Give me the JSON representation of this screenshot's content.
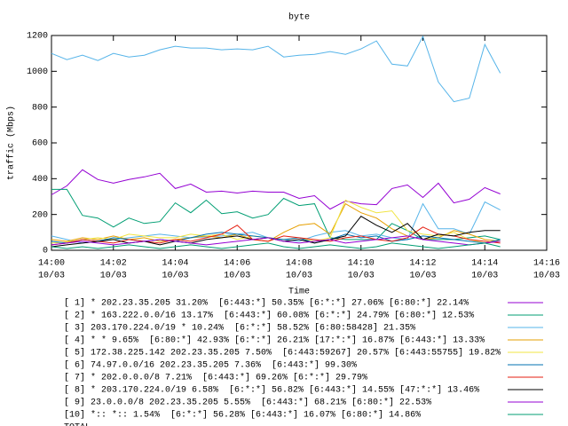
{
  "chart_data": {
    "type": "line",
    "title": "byte",
    "x_label": "Time",
    "y_label": "traffic (Mbps)",
    "x": [
      "14:00",
      "14:00:30",
      "14:01",
      "14:01:30",
      "14:02",
      "14:02:30",
      "14:03",
      "14:03:30",
      "14:04",
      "14:04:30",
      "14:05",
      "14:05:30",
      "14:06",
      "14:06:30",
      "14:07",
      "14:07:30",
      "14:08",
      "14:08:30",
      "14:09",
      "14:09:30",
      "14:10",
      "14:10:30",
      "14:11",
      "14:11:30",
      "14:12",
      "14:12:30",
      "14:13",
      "14:13:30",
      "14:14",
      "14:14:30"
    ],
    "xlim": [
      "14:00",
      "14:16"
    ],
    "xticks": [
      {
        "value": "14:00",
        "label": [
          "14:00",
          "10/03"
        ]
      },
      {
        "value": "14:02",
        "label": [
          "14:02",
          "10/03"
        ]
      },
      {
        "value": "14:04",
        "label": [
          "14:04",
          "10/03"
        ]
      },
      {
        "value": "14:06",
        "label": [
          "14:06",
          "10/03"
        ]
      },
      {
        "value": "14:08",
        "label": [
          "14:08",
          "10/03"
        ]
      },
      {
        "value": "14:10",
        "label": [
          "14:10",
          "10/03"
        ]
      },
      {
        "value": "14:12",
        "label": [
          "14:12",
          "10/03"
        ]
      },
      {
        "value": "14:14",
        "label": [
          "14:14",
          "10/03"
        ]
      },
      {
        "value": "14:16",
        "label": [
          "14:16",
          "10/03"
        ]
      }
    ],
    "ylim": [
      0,
      1200
    ],
    "yticks": [
      0,
      200,
      400,
      600,
      800,
      1000,
      1200
    ],
    "grid": false,
    "series": [
      {
        "name": "[ 1] * 202.23.35.205 31.20%  [6:443:*] 50.35% [6:*:*] 27.06% [6:80:*] 22.14%",
        "color": "#9400d3",
        "values": [
          310,
          360,
          450,
          395,
          375,
          395,
          410,
          430,
          345,
          370,
          325,
          330,
          320,
          330,
          325,
          325,
          290,
          305,
          230,
          275,
          260,
          255,
          345,
          365,
          295,
          375,
          265,
          285,
          350,
          315
        ]
      },
      {
        "name": "[ 2] * 163.222.0.0/16 13.17%  [6:443:*] 60.08% [6:*:*] 24.79% [6:80:*] 12.53%",
        "color": "#009e73",
        "values": [
          340,
          340,
          195,
          180,
          130,
          180,
          150,
          160,
          265,
          210,
          280,
          205,
          215,
          180,
          200,
          290,
          250,
          260,
          70,
          60,
          60,
          60,
          150,
          110,
          60,
          60,
          60,
          70,
          80,
          60
        ]
      },
      {
        "name": "[ 3] 203.170.224.0/19 * 10.24%  [6:*:*] 58.52% [6:80:58428] 21.35%",
        "color": "#56b4e9",
        "values": [
          80,
          60,
          40,
          50,
          60,
          70,
          80,
          90,
          80,
          70,
          75,
          80,
          90,
          100,
          70,
          60,
          50,
          80,
          100,
          110,
          80,
          90,
          70,
          60,
          260,
          120,
          120,
          90,
          270,
          225
        ]
      },
      {
        "name": "[ 4] * * 9.65%  [6:80:*] 42.93% [6:*:*] 26.21% [17:*:*] 16.87% [6:443:*] 13.33%",
        "color": "#e69f00",
        "values": [
          60,
          50,
          70,
          60,
          80,
          60,
          70,
          50,
          60,
          70,
          80,
          70,
          90,
          60,
          50,
          100,
          140,
          150,
          90,
          260,
          210,
          180,
          120,
          80,
          60,
          70,
          110,
          90,
          60,
          50
        ]
      },
      {
        "name": "[ 5] 172.38.225.142 202.23.35.205 7.50%  [6:443:59267] 20.57% [6:443:55755] 19.82%",
        "color": "#f0e442",
        "values": [
          40,
          45,
          60,
          70,
          60,
          90,
          80,
          70,
          70,
          90,
          80,
          90,
          60,
          80,
          70,
          60,
          70,
          50,
          70,
          280,
          240,
          210,
          220,
          110,
          90,
          80,
          100,
          60,
          40,
          50
        ]
      },
      {
        "name": "[ 6] 74.97.0.0/16 202.23.35.205 7.36%  [6:443:*] 99.30%",
        "color": "#0072b2",
        "values": [
          50,
          40,
          60,
          50,
          70,
          60,
          50,
          60,
          50,
          70,
          90,
          100,
          90,
          80,
          70,
          60,
          70,
          40,
          60,
          90,
          70,
          80,
          50,
          60,
          80,
          70,
          60,
          50,
          40,
          60
        ]
      },
      {
        "name": "[ 7] * 202.0.0.0/8 7.21%  [6:443:*] 69.26% [6:*:*] 29.79%",
        "color": "#e51e10",
        "values": [
          30,
          40,
          60,
          50,
          40,
          60,
          50,
          40,
          60,
          50,
          70,
          90,
          140,
          60,
          50,
          80,
          70,
          60,
          50,
          70,
          80,
          60,
          50,
          70,
          130,
          90,
          80,
          60,
          50,
          40
        ]
      },
      {
        "name": "[ 8] * 203.170.224.0/19 6.58%  [6:*:*] 56.82% [6:443:*] 14.55% [47:*:*] 13.46%",
        "color": "#000000",
        "values": [
          20,
          30,
          40,
          50,
          60,
          40,
          50,
          30,
          50,
          40,
          60,
          70,
          80,
          60,
          70,
          50,
          60,
          40,
          60,
          80,
          190,
          140,
          100,
          150,
          60,
          90,
          80,
          100,
          110,
          110
        ]
      },
      {
        "name": "[ 9] 23.0.0.0/8 202.23.35.205 5.55%  [6:443:*] 68.21% [6:80:*] 22.53%",
        "color": "#9400d3",
        "values": [
          30,
          40,
          50,
          40,
          30,
          40,
          50,
          60,
          50,
          40,
          30,
          40,
          50,
          60,
          70,
          50,
          40,
          50,
          60,
          40,
          50,
          60,
          70,
          80,
          60,
          50,
          40,
          30,
          40,
          50
        ]
      },
      {
        "name": "[10] *:: *:: 1.54%  [6:*:*] 56.28% [6:443:*] 16.07% [6:80:*] 14.86%",
        "color": "#009e73",
        "values": [
          20,
          10,
          20,
          10,
          20,
          30,
          20,
          10,
          20,
          30,
          20,
          10,
          20,
          30,
          40,
          20,
          10,
          20,
          30,
          20,
          10,
          20,
          40,
          30,
          20,
          10,
          20,
          30,
          40,
          20
        ]
      },
      {
        "name": "TOTAL",
        "color": "#56b4e9",
        "values": [
          1100,
          1065,
          1090,
          1060,
          1100,
          1080,
          1090,
          1120,
          1140,
          1130,
          1130,
          1120,
          1125,
          1120,
          1140,
          1080,
          1090,
          1095,
          1110,
          1095,
          1125,
          1170,
          1040,
          1030,
          1195,
          940,
          830,
          850,
          1150,
          990
        ]
      }
    ]
  }
}
